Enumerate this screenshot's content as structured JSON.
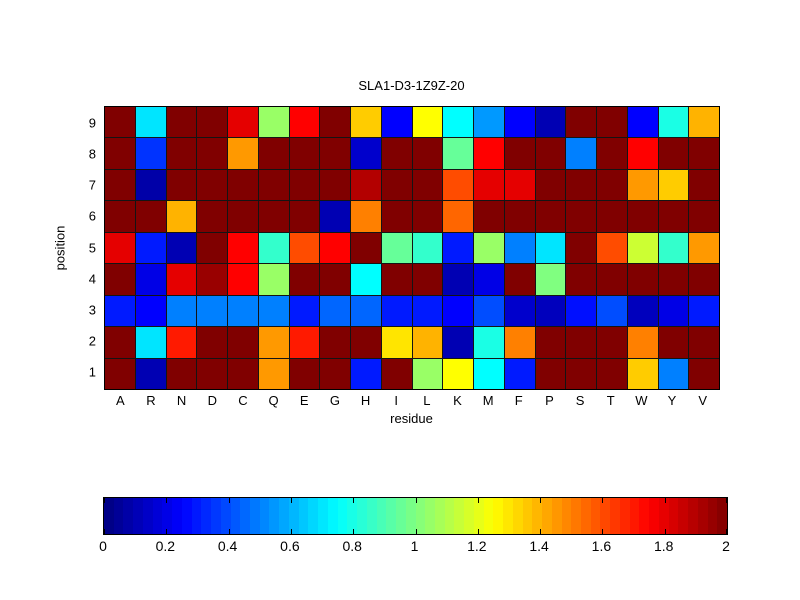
{
  "title": "SLA1-D3-1Z9Z-20",
  "xlabel": "residue",
  "ylabel": "position",
  "chart_data": {
    "type": "heatmap",
    "colormap": "jet",
    "vmin": 0,
    "vmax": 2,
    "x_categories": [
      "A",
      "R",
      "N",
      "D",
      "C",
      "Q",
      "E",
      "G",
      "H",
      "I",
      "L",
      "K",
      "M",
      "F",
      "P",
      "S",
      "T",
      "W",
      "Y",
      "V"
    ],
    "y_categories": [
      "9",
      "8",
      "7",
      "6",
      "5",
      "4",
      "3",
      "2",
      "1"
    ],
    "values": [
      [
        2.0,
        0.7,
        2.0,
        2.0,
        1.8,
        1.05,
        1.75,
        2.0,
        1.35,
        0.25,
        1.25,
        0.75,
        0.55,
        0.25,
        0.1,
        2.0,
        2.0,
        0.25,
        0.8,
        1.4
      ],
      [
        2.0,
        0.35,
        2.0,
        2.0,
        1.45,
        2.0,
        2.0,
        2.0,
        0.15,
        2.0,
        2.0,
        0.95,
        1.75,
        2.0,
        2.0,
        0.5,
        2.0,
        1.75,
        2.0,
        2.0
      ],
      [
        2.0,
        0.08,
        2.0,
        2.0,
        2.0,
        2.0,
        2.0,
        2.0,
        1.9,
        2.0,
        2.0,
        1.6,
        1.8,
        1.8,
        2.0,
        2.0,
        2.0,
        1.45,
        1.35,
        2.0
      ],
      [
        2.0,
        2.0,
        1.4,
        2.0,
        2.0,
        2.0,
        2.0,
        0.1,
        1.5,
        2.0,
        2.0,
        1.55,
        2.0,
        2.0,
        2.0,
        2.0,
        2.0,
        2.0,
        2.0,
        2.0
      ],
      [
        1.8,
        0.3,
        0.1,
        2.0,
        1.75,
        0.85,
        1.6,
        1.75,
        2.0,
        0.95,
        0.85,
        0.3,
        1.05,
        0.5,
        0.7,
        2.0,
        1.6,
        1.15,
        0.85,
        1.45
      ],
      [
        2.0,
        0.2,
        1.8,
        1.95,
        1.75,
        1.05,
        2.0,
        2.0,
        0.75,
        2.0,
        2.0,
        0.1,
        0.2,
        2.0,
        1.0,
        2.0,
        2.0,
        2.0,
        2.0,
        2.0
      ],
      [
        0.3,
        0.25,
        0.5,
        0.5,
        0.5,
        0.5,
        0.3,
        0.45,
        0.45,
        0.3,
        0.3,
        0.25,
        0.4,
        0.15,
        0.12,
        0.28,
        0.4,
        0.12,
        0.2,
        0.3
      ],
      [
        2.0,
        0.7,
        1.7,
        2.0,
        2.0,
        1.45,
        1.7,
        2.0,
        2.0,
        1.3,
        1.4,
        0.1,
        0.8,
        1.5,
        2.0,
        2.0,
        2.0,
        1.5,
        2.0,
        2.0
      ],
      [
        2.0,
        0.1,
        2.0,
        2.0,
        2.0,
        1.45,
        2.0,
        2.0,
        0.3,
        2.0,
        1.05,
        1.25,
        0.75,
        0.3,
        2.0,
        2.0,
        2.0,
        1.35,
        0.5,
        2.0
      ]
    ],
    "colorbar_ticks": [
      "0",
      "0.2",
      "0.4",
      "0.6",
      "0.8",
      "1",
      "1.2",
      "1.4",
      "1.6",
      "1.8",
      "2"
    ],
    "legend_position": "bottom",
    "grid_line_color": "#141414",
    "axis_color": "#000000"
  }
}
